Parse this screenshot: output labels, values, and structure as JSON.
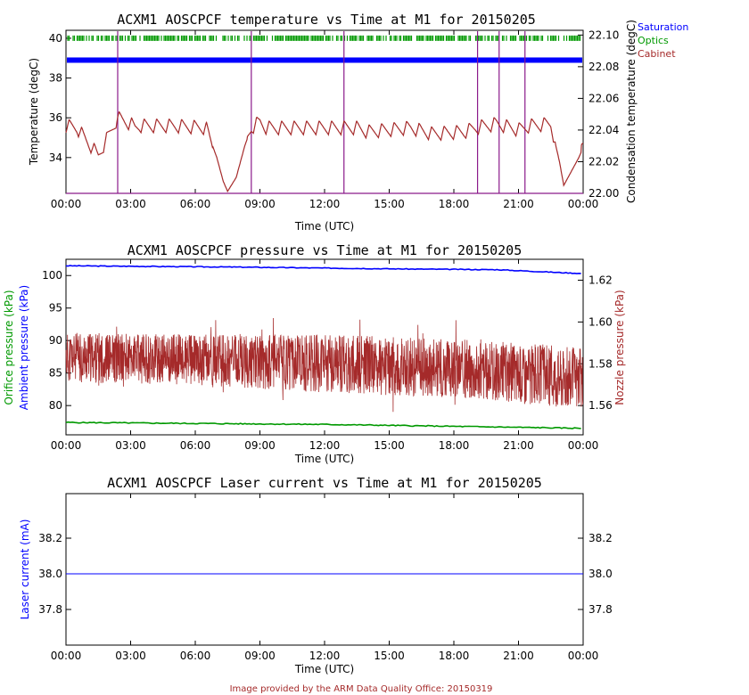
{
  "credit": "Image provided by the ARM Data Quality Office: 20150319",
  "colors": {
    "blue": "#0000ff",
    "green": "#009900",
    "darkred": "#a52a2a",
    "purple": "#8b1a8b",
    "legend_red": "#a52a2a"
  },
  "chart_data": [
    {
      "type": "line",
      "title": "ACXM1 AOSCPCF temperature vs Time at M1 for 20150205",
      "xlabel": "Time (UTC)",
      "ylabel": "Temperature (degC)",
      "ylabel_right": "Condensation temperature (degC)",
      "x_ticks": [
        "00:00",
        "03:00",
        "06:00",
        "09:00",
        "12:00",
        "15:00",
        "18:00",
        "21:00",
        "00:00"
      ],
      "xlim_hours": [
        0,
        24
      ],
      "ylim": [
        32.2,
        40.4
      ],
      "y_ticks": [
        34,
        36,
        38,
        40
      ],
      "ylim_right": [
        22.0,
        22.103
      ],
      "y_ticks_right": [
        "22.00",
        "22.02",
        "22.04",
        "22.06",
        "22.08",
        "22.10"
      ],
      "legend": [
        "Saturation",
        "Optics",
        "Cabinet"
      ],
      "legend_colors": [
        "#0000ff",
        "#009900",
        "#a52a2a"
      ],
      "series": [
        {
          "name": "Saturation",
          "axis": "left",
          "color": "#0000ff",
          "constant": 38.9
        },
        {
          "name": "Optics",
          "axis": "left",
          "color": "#009900",
          "constant": 40.0
        },
        {
          "name": "Cabinet",
          "axis": "left",
          "color": "#a52a2a",
          "x": [
            0.0,
            0.5,
            1.5,
            2.4,
            3.0,
            3.2,
            3.4,
            5.0,
            6.5,
            7.0,
            7.3,
            7.5,
            7.9,
            8.3,
            8.6,
            9.0,
            9.3,
            13.5,
            14.0,
            16.0,
            17.0,
            18.5,
            19.0,
            20.0,
            21.0,
            21.5,
            22.5,
            22.9,
            23.1,
            23.4,
            23.8,
            24.0
          ],
          "y": [
            35.6,
            35.5,
            34.1,
            36.0,
            35.7,
            35.5,
            35.6,
            35.6,
            35.5,
            34.0,
            32.8,
            32.3,
            33.0,
            34.6,
            35.5,
            35.8,
            35.5,
            35.5,
            35.3,
            35.5,
            35.2,
            35.3,
            35.5,
            35.7,
            35.4,
            35.6,
            35.7,
            33.8,
            32.6,
            33.2,
            34.0,
            34.5
          ]
        },
        {
          "name": "Condensation",
          "axis": "right",
          "color": "#8b1a8b",
          "baseline": 22.0,
          "spike_hours": [
            2.4,
            8.6,
            12.9,
            19.1,
            20.1,
            21.3
          ]
        }
      ]
    },
    {
      "type": "line",
      "title": "ACXM1 AOSCPCF pressure vs Time at M1 for 20150205",
      "xlabel": "Time (UTC)",
      "ylabel": "Ambient pressure (kPa)",
      "ylabel2": "Orifice pressure (kPa)",
      "ylabel_right": "Nozzle pressure (kPa)",
      "x_ticks": [
        "00:00",
        "03:00",
        "06:00",
        "09:00",
        "12:00",
        "15:00",
        "18:00",
        "21:00",
        "00:00"
      ],
      "xlim_hours": [
        0,
        24
      ],
      "ylim": [
        75.5,
        102.5
      ],
      "y_ticks": [
        80,
        85,
        90,
        95,
        100
      ],
      "ylim_right": [
        1.546,
        1.63
      ],
      "y_ticks_right": [
        "1.56",
        "1.58",
        "1.60",
        "1.62"
      ],
      "series": [
        {
          "name": "Ambient pressure",
          "axis": "left",
          "color": "#0000ff",
          "x": [
            0,
            8,
            16,
            20,
            24
          ],
          "y": [
            101.5,
            101.3,
            101.0,
            100.9,
            100.3
          ]
        },
        {
          "name": "Orifice pressure",
          "axis": "left",
          "color": "#009900",
          "x": [
            0,
            8,
            12,
            18,
            24
          ],
          "y": [
            77.4,
            77.2,
            77.1,
            76.8,
            76.5
          ]
        },
        {
          "name": "Nozzle pressure",
          "axis": "right",
          "color": "#a52a2a",
          "x": [
            0,
            6,
            12,
            18,
            24
          ],
          "y_mean": [
            1.583,
            1.582,
            1.58,
            1.578,
            1.573
          ],
          "y_amp": [
            0.012,
            0.012,
            0.014,
            0.014,
            0.015
          ]
        }
      ]
    },
    {
      "type": "line",
      "title": "ACXM1 AOSCPCF Laser current vs Time at M1 for 20150205",
      "xlabel": "Time (UTC)",
      "ylabel": "Laser current (mA)",
      "x_ticks": [
        "00:00",
        "03:00",
        "06:00",
        "09:00",
        "12:00",
        "15:00",
        "18:00",
        "21:00",
        "00:00"
      ],
      "xlim_hours": [
        0,
        24
      ],
      "ylim": [
        37.6,
        38.45
      ],
      "y_ticks": [
        "37.8",
        "38.0",
        "38.2"
      ],
      "series": [
        {
          "name": "Laser current",
          "color": "#0000ff",
          "x": [
            0,
            24
          ],
          "y": [
            38.0,
            38.0
          ]
        }
      ]
    }
  ]
}
